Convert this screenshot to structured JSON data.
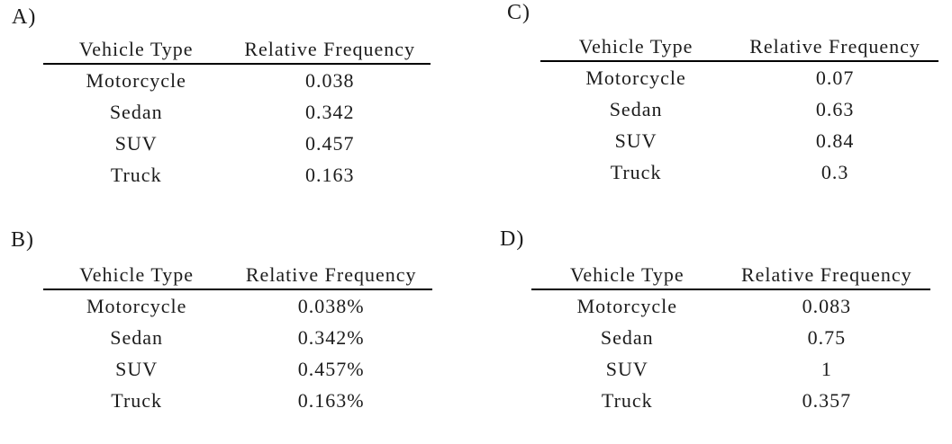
{
  "page": {
    "background_color": "#ffffff",
    "text_color": "#1c1c1c",
    "rule_color": "#000000",
    "description": "Four answer-choice relative frequency tables labeled A) B) C) D)"
  },
  "tables": [
    {
      "label": "A)",
      "col1_header": "Vehicle Type",
      "col2_header": "Relative Frequency",
      "rows": [
        {
          "vehicle": "Motorcycle",
          "frequency": "0.038"
        },
        {
          "vehicle": "Sedan",
          "frequency": "0.342"
        },
        {
          "vehicle": "SUV",
          "frequency": "0.457"
        },
        {
          "vehicle": "Truck",
          "frequency": "0.163"
        }
      ]
    },
    {
      "label": "B)",
      "col1_header": "Vehicle Type",
      "col2_header": "Relative Frequency",
      "rows": [
        {
          "vehicle": "Motorcycle",
          "frequency": "0.038%"
        },
        {
          "vehicle": "Sedan",
          "frequency": "0.342%"
        },
        {
          "vehicle": "SUV",
          "frequency": "0.457%"
        },
        {
          "vehicle": "Truck",
          "frequency": "0.163%"
        }
      ]
    },
    {
      "label": "C)",
      "col1_header": "Vehicle Type",
      "col2_header": "Relative Frequency",
      "rows": [
        {
          "vehicle": "Motorcycle",
          "frequency": "0.07"
        },
        {
          "vehicle": "Sedan",
          "frequency": "0.63"
        },
        {
          "vehicle": "SUV",
          "frequency": "0.84"
        },
        {
          "vehicle": "Truck",
          "frequency": "0.3"
        }
      ]
    },
    {
      "label": "D)",
      "col1_header": "Vehicle Type",
      "col2_header": "Relative Frequency",
      "rows": [
        {
          "vehicle": "Motorcycle",
          "frequency": "0.083"
        },
        {
          "vehicle": "Sedan",
          "frequency": "0.75"
        },
        {
          "vehicle": "SUV",
          "frequency": "1"
        },
        {
          "vehicle": "Truck",
          "frequency": "0.357"
        }
      ]
    }
  ]
}
